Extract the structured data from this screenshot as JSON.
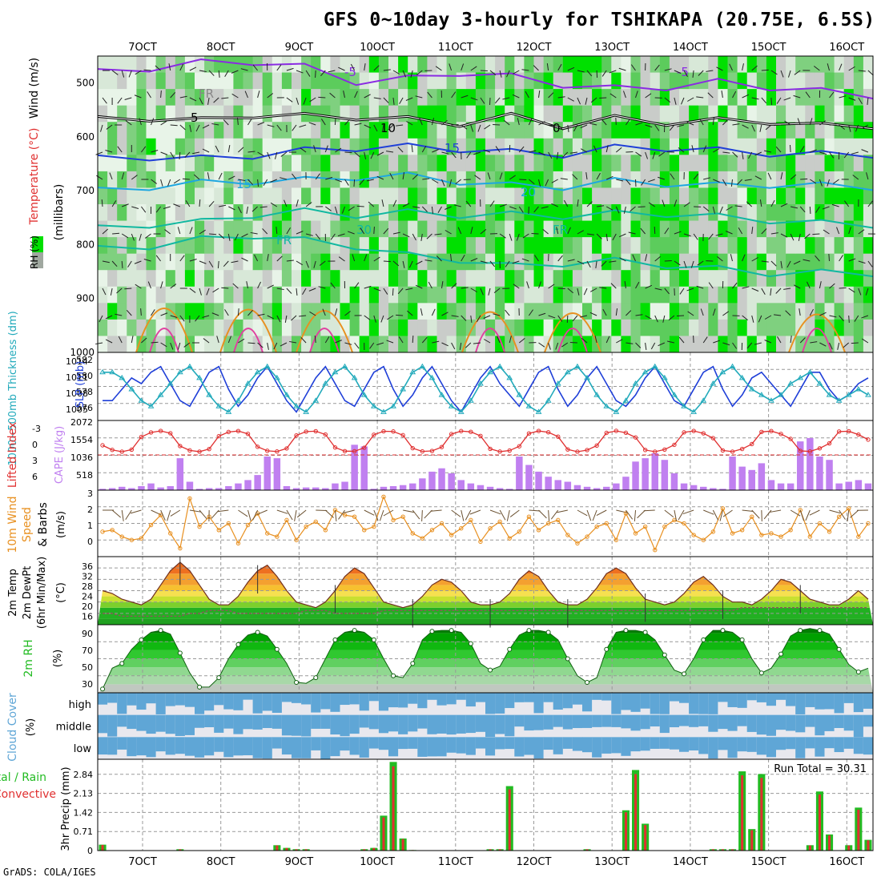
{
  "title": "GFS 0~10day 3-hourly for TSHIKAPA (20.75E, 6.5S)",
  "footer": "GrADS: COLA/IGES",
  "colors": {
    "grid": "#999999",
    "purple": "#8a2be2",
    "blue": "#1f3fd8",
    "cyan": "#22aabb",
    "orange": "#e89020",
    "green": "#22bb22",
    "red": "#e03030",
    "cloud": "#5fa6d6",
    "rhlight": "#e8f4e8",
    "rhmid": "#7fd07f",
    "rhdark": "#00e000"
  },
  "chart_data": [
    {
      "type": "heatmap",
      "name": "upper-air cross-section",
      "ylabel_rh": "RH (%)",
      "ylabel_temp": "Temperature (°C)",
      "ylabel_wind": "Wind (m/s)",
      "ylabel_units": "(millibars)",
      "x_ticks": [
        "7OCT",
        "8OCT",
        "9OCT",
        "10OCT",
        "11OCT",
        "12OCT",
        "13OCT",
        "14OCT",
        "15OCT",
        "16OCT"
      ],
      "y_ticks": [
        "500",
        "600",
        "700",
        "800",
        "900",
        "1000"
      ],
      "ylim": [
        450,
        1000
      ],
      "contour_labels": [
        "-5",
        "-5",
        "5",
        "10",
        "0",
        "15",
        "15",
        "20",
        "30",
        "FR",
        "FR",
        "FR"
      ],
      "isotherms": [
        {
          "label": "-5",
          "color": "purple",
          "p": [
            480,
            470,
            462,
            458,
            470,
            495,
            492,
            478,
            488,
            500,
            510,
            505,
            498,
            505,
            515,
            520
          ]
        },
        {
          "label": "FR",
          "color": "black",
          "p": [
            568,
            562,
            570,
            556,
            562,
            560,
            568,
            572,
            562,
            576,
            566,
            570,
            570,
            568,
            580,
            576
          ]
        },
        {
          "label": "5",
          "color": "blue",
          "p": [
            640,
            635,
            640,
            632,
            625,
            618,
            618,
            620,
            628,
            630,
            620,
            618,
            625,
            628,
            632,
            630
          ]
        },
        {
          "label": "10",
          "color": "cyan",
          "p": [
            700,
            690,
            685,
            680,
            680,
            672,
            672,
            680,
            690,
            690,
            682,
            684,
            690,
            686,
            690,
            690
          ]
        },
        {
          "label": "15",
          "color": "teal",
          "p": [
            770,
            760,
            758,
            742,
            738,
            742,
            740,
            742,
            744,
            744,
            742,
            740,
            748,
            752,
            760,
            760
          ]
        },
        {
          "label": "20",
          "color": "teal",
          "p": [
            808,
            800,
            790,
            780,
            792,
            800,
            820,
            825,
            840,
            832,
            830,
            835,
            845,
            850,
            852,
            850
          ]
        }
      ]
    },
    {
      "type": "line",
      "name": "thickness and slp",
      "ylabel_left": "1000~500mb Thickness (dm)",
      "ylabel_right": "SLP (mb)",
      "left_ticks": [
        "582",
        "580",
        "578",
        "576"
      ],
      "right_ticks": [
        "1014",
        "1011",
        "1008",
        "1005"
      ],
      "ylim": [
        1003.5,
        1015.5
      ],
      "series": [
        {
          "name": "SLP",
          "color": "blue",
          "values": [
            1007,
            1007,
            1009,
            1011,
            1010,
            1012,
            1013,
            1010,
            1007,
            1006,
            1009,
            1012,
            1013,
            1009,
            1006,
            1008,
            1011,
            1013,
            1010,
            1007,
            1005,
            1008,
            1011,
            1013,
            1010,
            1007,
            1006,
            1009,
            1012,
            1013,
            1009,
            1006,
            1008,
            1011,
            1013,
            1010,
            1007,
            1005,
            1008,
            1011,
            1013,
            1010,
            1008,
            1006,
            1009,
            1012,
            1013,
            1009,
            1006,
            1008,
            1011,
            1013,
            1010,
            1007,
            1006,
            1008,
            1011,
            1013,
            1010,
            1007,
            1006,
            1009,
            1012,
            1013,
            1009,
            1006,
            1008,
            1011,
            1012,
            1010,
            1008,
            1006,
            1009,
            1012,
            1012,
            1009,
            1007,
            1008,
            1010,
            1011
          ]
        },
        {
          "name": "Thickness",
          "color": "cyan",
          "values": [
            1012,
            1012,
            1011,
            1009,
            1007,
            1006,
            1008,
            1010,
            1012,
            1013,
            1011,
            1008,
            1006,
            1005,
            1007,
            1010,
            1012,
            1013,
            1011,
            1008,
            1006,
            1005,
            1007,
            1010,
            1012,
            1013,
            1011,
            1008,
            1006,
            1005,
            1006,
            1009,
            1012,
            1013,
            1011,
            1008,
            1006,
            1005,
            1007,
            1010,
            1012,
            1013,
            1011,
            1008,
            1006,
            1005,
            1007,
            1010,
            1012,
            1013,
            1011,
            1008,
            1006,
            1005,
            1007,
            1010,
            1012,
            1013,
            1011,
            1008,
            1006,
            1005,
            1007,
            1010,
            1012,
            1013,
            1011,
            1009,
            1008,
            1007,
            1008,
            1010,
            1011,
            1012,
            1010,
            1008,
            1007,
            1008,
            1009,
            1008
          ]
        }
      ]
    },
    {
      "type": "bar",
      "name": "lifted index and cape",
      "ylabel_left": "Lifted Index",
      "ylabel_right": "CAPE (J/kg)",
      "left_ticks": [
        "-3",
        "0",
        "3",
        "6"
      ],
      "right_ticks": [
        "2072",
        "1554",
        "1036",
        "518"
      ],
      "cape_max": 2072,
      "cape": [
        40,
        60,
        100,
        60,
        120,
        200,
        80,
        120,
        950,
        250,
        40,
        60,
        60,
        120,
        200,
        300,
        450,
        1000,
        950,
        120,
        60,
        80,
        80,
        60,
        200,
        250,
        1350,
        1300,
        40,
        100,
        120,
        150,
        200,
        350,
        550,
        650,
        500,
        300,
        200,
        150,
        100,
        60,
        40,
        1000,
        750,
        550,
        400,
        300,
        250,
        150,
        100,
        60,
        100,
        200,
        400,
        850,
        950,
        1100,
        900,
        500,
        200,
        150,
        100,
        60,
        40,
        1000,
        700,
        600,
        800,
        300,
        200,
        200,
        1450,
        1550,
        1000,
        900,
        200,
        250,
        300,
        200
      ],
      "li_points_count": 80
    },
    {
      "type": "line",
      "name": "10m wind",
      "ylabel": "10m Wind Speed & Barbs (m/s)",
      "ticks": [
        "3",
        "2",
        "1",
        "0"
      ],
      "ylim": [
        0,
        4
      ],
      "series": [
        {
          "name": "Speed",
          "color": "orange",
          "values": [
            1.5,
            1.6,
            1.2,
            1.0,
            1.1,
            1.9,
            2.5,
            1.4,
            0.5,
            3.5,
            1.8,
            2.4,
            1.6,
            2.0,
            0.8,
            1.9,
            2.6,
            1.4,
            1.2,
            2.2,
            1.0,
            1.8,
            2.1,
            1.6,
            2.8,
            2.5,
            2.4,
            1.6,
            1.8,
            3.6,
            2.2,
            2.4,
            1.4,
            1.1,
            1.6,
            2.0,
            1.3,
            1.7,
            2.2,
            0.9,
            1.7,
            2.1,
            1.1,
            1.5,
            2.4,
            1.6,
            2.0,
            2.2,
            1.3,
            0.8,
            1.2,
            1.8,
            2.0,
            1.0,
            2.6,
            1.4,
            1.8,
            0.4,
            1.8,
            2.2,
            2.0,
            1.3,
            1.0,
            1.5,
            2.9,
            1.4,
            1.6,
            2.4,
            1.3,
            1.4,
            1.2,
            1.6,
            2.8,
            1.2,
            2.0,
            1.5,
            2.4,
            2.9,
            1.2,
            2.0
          ]
        }
      ]
    },
    {
      "type": "area",
      "name": "2m temp dewpoint",
      "ylabel": "2m Temp 2m DewPt (6hr Min/Max) (°C)",
      "ticks": [
        "36",
        "32",
        "28",
        "24",
        "20",
        "16"
      ],
      "ylim": [
        14,
        38
      ],
      "series": [
        {
          "name": "Temp",
          "values": [
            26,
            25,
            23,
            22,
            21,
            23,
            28,
            33,
            36,
            33,
            28,
            23,
            21,
            21,
            24,
            29,
            33,
            35,
            31,
            26,
            22,
            21,
            20,
            22,
            26,
            31,
            34,
            32,
            27,
            22,
            21,
            20,
            21,
            24,
            28,
            30,
            29,
            26,
            22,
            21,
            21,
            22,
            25,
            30,
            33,
            31,
            26,
            22,
            21,
            21,
            23,
            27,
            32,
            34,
            32,
            27,
            23,
            22,
            21,
            22,
            25,
            29,
            31,
            28,
            24,
            22,
            22,
            21,
            23,
            26,
            30,
            29,
            26,
            23,
            22,
            21,
            21,
            23,
            26,
            23
          ]
        },
        {
          "name": "DewPt",
          "values": [
            18,
            18,
            17,
            17,
            17,
            17,
            17,
            17,
            17,
            18,
            18,
            19,
            19,
            19,
            18,
            18,
            18,
            18,
            18,
            18,
            18,
            19,
            19,
            19,
            18,
            18,
            18,
            18,
            18,
            19,
            19,
            19,
            19,
            19,
            19,
            19,
            19,
            19,
            19,
            19,
            19,
            19,
            19,
            19,
            19,
            19,
            19,
            19,
            19,
            19,
            19,
            19,
            19,
            19,
            19,
            19,
            19,
            19,
            19,
            19,
            19,
            19,
            19,
            19,
            19,
            19,
            20,
            20,
            20,
            20,
            20,
            20,
            20,
            20,
            20,
            20,
            20,
            20,
            20,
            20
          ]
        }
      ]
    },
    {
      "type": "area",
      "name": "2m rh",
      "ylabel": "2m RH (%)",
      "ticks": [
        "90",
        "70",
        "50",
        "30"
      ],
      "ylim": [
        24,
        96
      ],
      "series": [
        {
          "name": "RH",
          "values": [
            28,
            50,
            55,
            70,
            80,
            88,
            90,
            86,
            66,
            45,
            30,
            30,
            40,
            60,
            75,
            85,
            88,
            84,
            70,
            55,
            35,
            34,
            40,
            60,
            80,
            88,
            90,
            88,
            80,
            60,
            42,
            40,
            55,
            80,
            89,
            90,
            90,
            88,
            76,
            55,
            48,
            52,
            70,
            85,
            90,
            90,
            88,
            80,
            60,
            42,
            35,
            40,
            70,
            88,
            90,
            90,
            88,
            80,
            64,
            48,
            44,
            60,
            80,
            90,
            90,
            88,
            80,
            60,
            45,
            50,
            65,
            84,
            90,
            92,
            90,
            86,
            70,
            54,
            46,
            50
          ]
        }
      ]
    },
    {
      "type": "heatmap",
      "name": "cloud cover",
      "ylabel": "Cloud Cover (%)",
      "layers": [
        "high",
        "middle",
        "low"
      ],
      "cloud_counts": 80
    },
    {
      "type": "bar",
      "name": "3hr precip",
      "ylabel": "3hr Precip (mm)",
      "legend": "Total / Rain Convective",
      "run_total": "Run Total = 30.31",
      "ticks": [
        "2.84",
        "2.13",
        "1.42",
        "0.71",
        "0"
      ],
      "ylim": [
        0,
        3.4
      ],
      "totals": [
        0.22,
        0,
        0,
        0,
        0,
        0,
        0,
        0,
        0.05,
        0,
        0,
        0,
        0,
        0,
        0,
        0,
        0,
        0,
        0.2,
        0.1,
        0.05,
        0.05,
        0,
        0,
        0,
        0,
        0,
        0.05,
        0.1,
        1.3,
        3.3,
        0.45,
        0.02,
        0,
        0,
        0,
        0,
        0,
        0,
        0,
        0.05,
        0.05,
        2.4,
        0,
        0,
        0,
        0,
        0,
        0,
        0,
        0.05,
        0,
        0,
        0,
        1.5,
        3.0,
        1.0,
        0,
        0,
        0,
        0,
        0,
        0,
        0.05,
        0.05,
        0.05,
        2.95,
        0.8,
        2.85,
        0,
        0,
        0,
        0,
        0.2,
        2.2,
        0.6,
        0,
        0.2,
        1.6,
        0.4
      ],
      "extra_totals": [
        0.35,
        0.4,
        0.3,
        0,
        2.35,
        0,
        0,
        0,
        0,
        0.05,
        0.25,
        0,
        0,
        0.65,
        1.15
      ]
    }
  ],
  "axis": {
    "x_ticks": [
      "7OCT",
      "8OCT",
      "9OCT",
      "10OCT",
      "11OCT",
      "12OCT",
      "13OCT",
      "14OCT",
      "15OCT",
      "16OCT"
    ]
  }
}
